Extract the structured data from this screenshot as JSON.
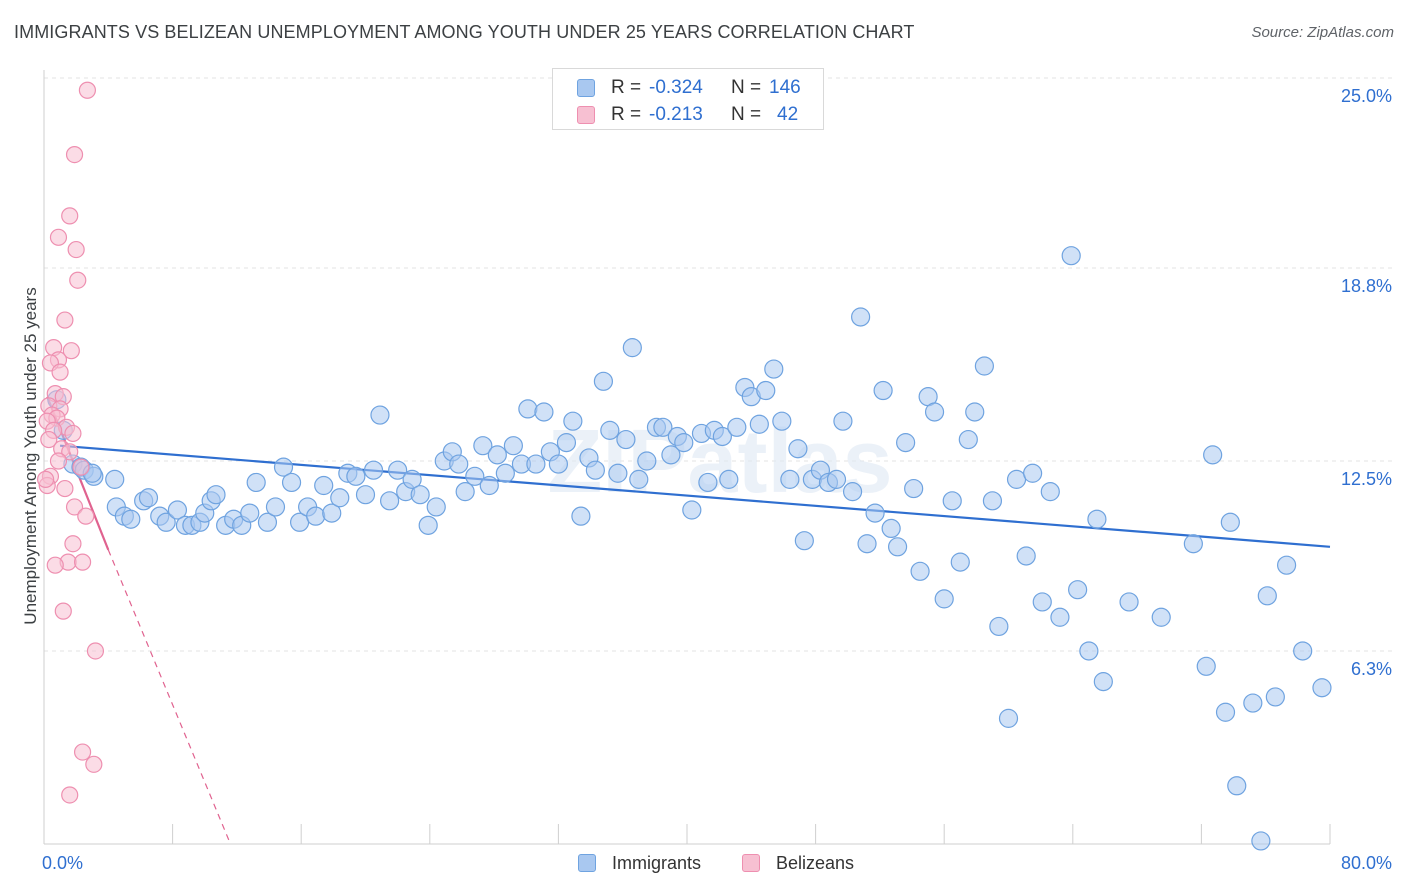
{
  "title": "IMMIGRANTS VS BELIZEAN UNEMPLOYMENT AMONG YOUTH UNDER 25 YEARS CORRELATION CHART",
  "source": "Source: ZipAtlas.com",
  "watermark": "ZIPatlas",
  "legend": {
    "rows": [
      {
        "r_label": "R =",
        "r_value": "-0.324",
        "n_label": "N =",
        "n_value": "146",
        "color": "#a9c8f0"
      },
      {
        "r_label": "R =",
        "r_value": "-0.213",
        "n_label": "N =",
        "n_value": "42",
        "color": "#f5b3c8"
      }
    ]
  },
  "colors": {
    "immigrants_fill": "#a9c8f0",
    "immigrants_stroke": "#6fa3e0",
    "immigrants_line": "#2f6fd0",
    "belizeans_fill": "#f7c0d2",
    "belizeans_stroke": "#ee8fb0",
    "belizeans_line": "#e0628f",
    "tick_text": "#2f6fd0",
    "grid": "#e3e3e3"
  },
  "chart_data": {
    "type": "scatter",
    "ylabel": "Unemployment Among Youth under 25 years",
    "xlim": [
      0,
      80
    ],
    "ylim": [
      0,
      25.0
    ],
    "x_tick_labels": [
      "0.0%",
      "80.0%"
    ],
    "y_ticks": [
      {
        "value": 6.3,
        "label": "6.3%"
      },
      {
        "value": 12.5,
        "label": "12.5%"
      },
      {
        "value": 18.8,
        "label": "18.8%"
      },
      {
        "value": 25.0,
        "label": "25.0%"
      }
    ],
    "grid": true,
    "legend_position": "top-center",
    "series": [
      {
        "name": "Immigrants",
        "trend": {
          "x0": 1.0,
          "y0": 13.0,
          "x1": 80.0,
          "y1": 9.7
        },
        "points": [
          [
            0.8,
            14.5
          ],
          [
            1.2,
            13.5
          ],
          [
            1.8,
            12.4
          ],
          [
            2.3,
            12.3
          ],
          [
            2.5,
            12.2
          ],
          [
            3.1,
            12.0
          ],
          [
            3.0,
            12.1
          ],
          [
            4.4,
            11.9
          ],
          [
            4.5,
            11.0
          ],
          [
            5.0,
            10.7
          ],
          [
            5.4,
            10.6
          ],
          [
            6.2,
            11.2
          ],
          [
            6.5,
            11.3
          ],
          [
            7.2,
            10.7
          ],
          [
            7.6,
            10.5
          ],
          [
            8.3,
            10.9
          ],
          [
            8.8,
            10.4
          ],
          [
            9.2,
            10.4
          ],
          [
            9.7,
            10.5
          ],
          [
            10.0,
            10.8
          ],
          [
            10.4,
            11.2
          ],
          [
            10.7,
            11.4
          ],
          [
            11.3,
            10.4
          ],
          [
            11.8,
            10.6
          ],
          [
            12.3,
            10.4
          ],
          [
            12.8,
            10.8
          ],
          [
            13.2,
            11.8
          ],
          [
            13.9,
            10.5
          ],
          [
            14.4,
            11.0
          ],
          [
            14.9,
            12.3
          ],
          [
            15.4,
            11.8
          ],
          [
            15.9,
            10.5
          ],
          [
            16.4,
            11.0
          ],
          [
            16.9,
            10.7
          ],
          [
            17.4,
            11.7
          ],
          [
            17.9,
            10.8
          ],
          [
            18.4,
            11.3
          ],
          [
            18.9,
            12.1
          ],
          [
            19.4,
            12.0
          ],
          [
            20.0,
            11.4
          ],
          [
            20.5,
            12.2
          ],
          [
            20.9,
            14.0
          ],
          [
            21.5,
            11.2
          ],
          [
            22.0,
            12.2
          ],
          [
            22.5,
            11.5
          ],
          [
            22.9,
            11.9
          ],
          [
            23.4,
            11.4
          ],
          [
            23.9,
            10.4
          ],
          [
            24.4,
            11.0
          ],
          [
            24.9,
            12.5
          ],
          [
            25.4,
            12.8
          ],
          [
            25.8,
            12.4
          ],
          [
            26.2,
            11.5
          ],
          [
            26.8,
            12.0
          ],
          [
            27.3,
            13.0
          ],
          [
            27.7,
            11.7
          ],
          [
            28.2,
            12.7
          ],
          [
            28.7,
            12.1
          ],
          [
            29.2,
            13.0
          ],
          [
            29.7,
            12.4
          ],
          [
            30.1,
            14.2
          ],
          [
            30.6,
            12.4
          ],
          [
            31.1,
            14.1
          ],
          [
            31.5,
            12.8
          ],
          [
            32.0,
            12.4
          ],
          [
            32.5,
            13.1
          ],
          [
            32.9,
            13.8
          ],
          [
            33.4,
            10.7
          ],
          [
            33.9,
            12.6
          ],
          [
            34.3,
            12.2
          ],
          [
            34.8,
            15.1
          ],
          [
            35.2,
            13.5
          ],
          [
            35.7,
            12.1
          ],
          [
            36.2,
            13.2
          ],
          [
            36.6,
            16.2
          ],
          [
            37.0,
            11.9
          ],
          [
            37.5,
            12.5
          ],
          [
            38.1,
            13.6
          ],
          [
            38.5,
            13.6
          ],
          [
            39.0,
            12.7
          ],
          [
            39.4,
            13.3
          ],
          [
            39.8,
            13.1
          ],
          [
            40.3,
            10.9
          ],
          [
            40.9,
            13.4
          ],
          [
            41.3,
            11.8
          ],
          [
            41.7,
            13.5
          ],
          [
            42.2,
            13.3
          ],
          [
            42.6,
            11.9
          ],
          [
            43.1,
            13.6
          ],
          [
            43.6,
            14.9
          ],
          [
            44.0,
            14.6
          ],
          [
            44.5,
            13.7
          ],
          [
            44.9,
            14.8
          ],
          [
            45.4,
            15.5
          ],
          [
            45.9,
            13.8
          ],
          [
            46.4,
            11.9
          ],
          [
            46.9,
            12.9
          ],
          [
            47.3,
            9.9
          ],
          [
            47.8,
            11.9
          ],
          [
            48.3,
            12.2
          ],
          [
            48.8,
            11.8
          ],
          [
            49.3,
            11.9
          ],
          [
            49.7,
            13.8
          ],
          [
            50.3,
            11.5
          ],
          [
            50.8,
            17.2
          ],
          [
            51.2,
            9.8
          ],
          [
            51.7,
            10.8
          ],
          [
            52.2,
            14.8
          ],
          [
            52.7,
            10.3
          ],
          [
            53.1,
            9.7
          ],
          [
            53.6,
            13.1
          ],
          [
            54.1,
            11.6
          ],
          [
            54.5,
            8.9
          ],
          [
            55.0,
            14.6
          ],
          [
            55.4,
            14.1
          ],
          [
            56.0,
            8.0
          ],
          [
            56.5,
            11.2
          ],
          [
            57.0,
            9.2
          ],
          [
            57.5,
            13.2
          ],
          [
            57.9,
            14.1
          ],
          [
            58.5,
            15.6
          ],
          [
            59.0,
            11.2
          ],
          [
            59.4,
            7.1
          ],
          [
            60.0,
            4.1
          ],
          [
            60.5,
            11.9
          ],
          [
            61.1,
            9.4
          ],
          [
            61.5,
            12.1
          ],
          [
            62.1,
            7.9
          ],
          [
            62.6,
            11.5
          ],
          [
            63.2,
            7.4
          ],
          [
            64.3,
            8.3
          ],
          [
            63.9,
            19.2
          ],
          [
            65.0,
            6.3
          ],
          [
            65.9,
            5.3
          ],
          [
            67.5,
            7.9
          ],
          [
            69.5,
            7.4
          ],
          [
            71.5,
            9.8
          ],
          [
            72.3,
            5.8
          ],
          [
            72.7,
            12.7
          ],
          [
            73.5,
            4.3
          ],
          [
            73.8,
            10.5
          ],
          [
            74.2,
            1.9
          ],
          [
            75.2,
            4.6
          ],
          [
            75.7,
            0.1
          ],
          [
            76.1,
            8.1
          ],
          [
            76.6,
            4.8
          ],
          [
            77.3,
            9.1
          ],
          [
            78.3,
            6.3
          ],
          [
            79.5,
            5.1
          ],
          [
            65.5,
            10.6
          ]
        ]
      },
      {
        "name": "Belizeans",
        "trend": {
          "x0": 0.2,
          "y0": 14.6,
          "x1": 4.0,
          "y1": 9.6
        },
        "trend_extension": {
          "x0": 4.0,
          "y0": 9.6,
          "x1": 11.6,
          "y1": 0.0
        },
        "points": [
          [
            2.7,
            24.6
          ],
          [
            1.9,
            22.5
          ],
          [
            1.6,
            20.5
          ],
          [
            0.9,
            19.8
          ],
          [
            2.0,
            19.4
          ],
          [
            2.1,
            18.4
          ],
          [
            1.3,
            17.1
          ],
          [
            0.6,
            16.2
          ],
          [
            1.7,
            16.1
          ],
          [
            0.9,
            15.8
          ],
          [
            0.4,
            15.7
          ],
          [
            1.0,
            15.4
          ],
          [
            0.7,
            14.7
          ],
          [
            1.2,
            14.6
          ],
          [
            0.3,
            14.3
          ],
          [
            1.0,
            14.2
          ],
          [
            0.5,
            14.0
          ],
          [
            0.8,
            13.9
          ],
          [
            0.2,
            13.8
          ],
          [
            1.4,
            13.6
          ],
          [
            0.6,
            13.5
          ],
          [
            1.8,
            13.4
          ],
          [
            0.3,
            13.2
          ],
          [
            1.1,
            12.9
          ],
          [
            1.6,
            12.8
          ],
          [
            0.9,
            12.5
          ],
          [
            2.3,
            12.3
          ],
          [
            0.4,
            12.0
          ],
          [
            1.3,
            11.6
          ],
          [
            0.2,
            11.7
          ],
          [
            1.9,
            11.0
          ],
          [
            2.6,
            10.7
          ],
          [
            1.8,
            9.8
          ],
          [
            1.5,
            9.2
          ],
          [
            2.4,
            9.2
          ],
          [
            0.7,
            9.1
          ],
          [
            1.2,
            7.6
          ],
          [
            3.2,
            6.3
          ],
          [
            2.4,
            3.0
          ],
          [
            3.1,
            2.6
          ],
          [
            1.6,
            1.6
          ],
          [
            0.1,
            11.9
          ]
        ]
      }
    ]
  }
}
